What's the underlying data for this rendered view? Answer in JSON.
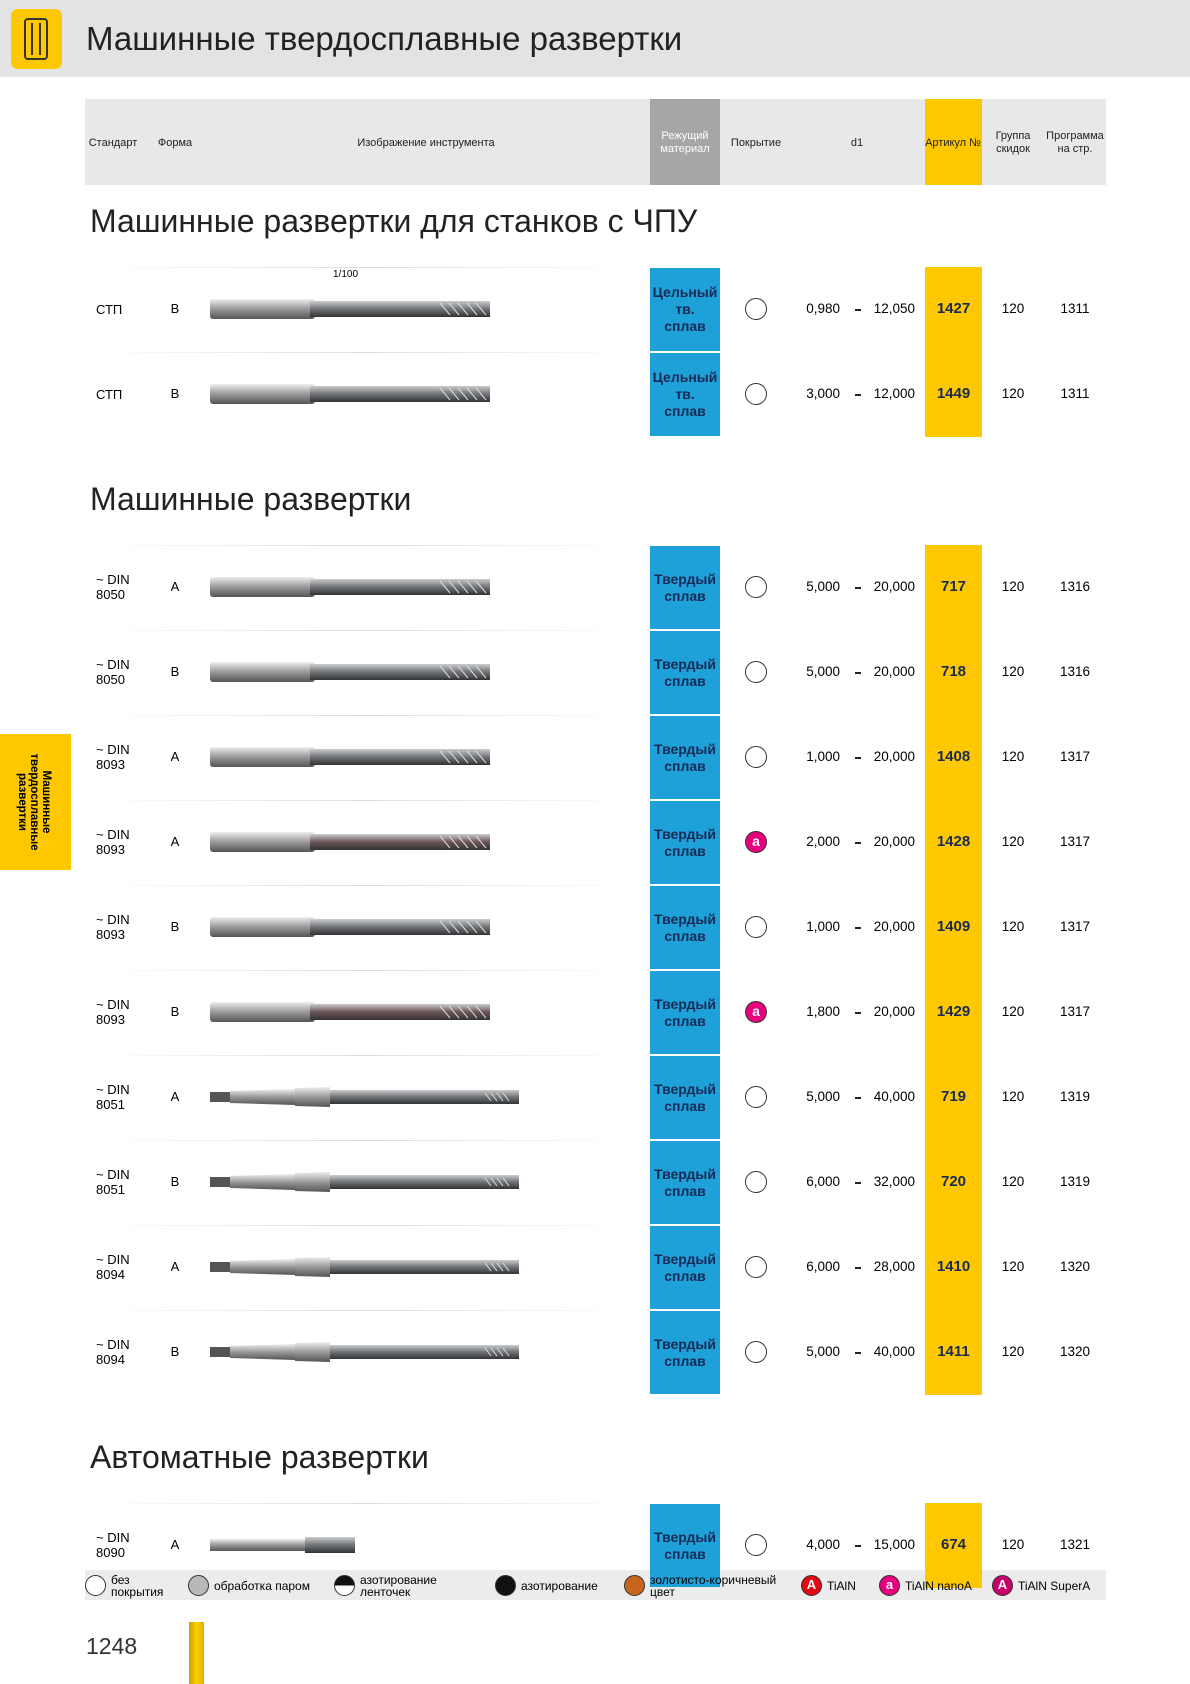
{
  "header": {
    "title": "Машинные твердосплавные развертки"
  },
  "columns": [
    "Стандарт",
    "Форма",
    "Изображение инструмента",
    "Режущий материал",
    "Покрытие",
    "d1",
    "Артикул №",
    "Группа скидок",
    "Программа на стр."
  ],
  "sections": [
    {
      "title": "Машинные развертки для станков с ЧПУ",
      "rows": [
        {
          "standard": "СТП",
          "form": "B",
          "note": "1/100",
          "material": "Цельный тв. сплав",
          "d1": [
            "0,980",
            "12,050"
          ],
          "article": "1427",
          "group": "120",
          "page": "1311"
        },
        {
          "standard": "СТП",
          "form": "B",
          "material": "Цельный тв. сплав",
          "d1": [
            "3,000",
            "12,000"
          ],
          "article": "1449",
          "group": "120",
          "page": "1311"
        }
      ]
    },
    {
      "title": "Машинные развертки",
      "rows": [
        {
          "standard": "~ DIN 8050",
          "form": "A",
          "material": "Твердый сплав",
          "d1": [
            "5,000",
            "20,000"
          ],
          "article": "717",
          "group": "120",
          "page": "1316"
        },
        {
          "standard": "~ DIN 8050",
          "form": "B",
          "material": "Твердый сплав",
          "d1": [
            "5,000",
            "20,000"
          ],
          "article": "718",
          "group": "120",
          "page": "1316"
        },
        {
          "standard": "~ DIN 8093",
          "form": "A",
          "material": "Твердый сплав",
          "d1": [
            "1,000",
            "20,000"
          ],
          "article": "1408",
          "group": "120",
          "page": "1317"
        },
        {
          "standard": "~ DIN 8093",
          "form": "A",
          "material": "Твердый сплав",
          "coating": "a",
          "d1": [
            "2,000",
            "20,000"
          ],
          "article": "1428",
          "group": "120",
          "page": "1317"
        },
        {
          "standard": "~ DIN 8093",
          "form": "B",
          "material": "Твердый сплав",
          "d1": [
            "1,000",
            "20,000"
          ],
          "article": "1409",
          "group": "120",
          "page": "1317"
        },
        {
          "standard": "~ DIN 8093",
          "form": "B",
          "material": "Твердый сплав",
          "coating": "a",
          "d1": [
            "1,800",
            "20,000"
          ],
          "article": "1429",
          "group": "120",
          "page": "1317"
        },
        {
          "standard": "~ DIN 8051",
          "form": "A",
          "material": "Твердый сплав",
          "d1": [
            "5,000",
            "40,000"
          ],
          "article": "719",
          "group": "120",
          "page": "1319"
        },
        {
          "standard": "~ DIN 8051",
          "form": "B",
          "material": "Твердый сплав",
          "d1": [
            "6,000",
            "32,000"
          ],
          "article": "720",
          "group": "120",
          "page": "1319"
        },
        {
          "standard": "~ DIN 8094",
          "form": "A",
          "material": "Твердый сплав",
          "d1": [
            "6,000",
            "28,000"
          ],
          "article": "1410",
          "group": "120",
          "page": "1320"
        },
        {
          "standard": "~ DIN 8094",
          "form": "B",
          "material": "Твердый сплав",
          "d1": [
            "5,000",
            "40,000"
          ],
          "article": "1411",
          "group": "120",
          "page": "1320"
        }
      ]
    },
    {
      "title": "Автоматные развертки",
      "rows": [
        {
          "standard": "~ DIN 8090",
          "form": "A",
          "material": "Твердый сплав",
          "d1": [
            "4,000",
            "15,000"
          ],
          "article": "674",
          "group": "120",
          "page": "1321"
        }
      ]
    }
  ],
  "legend": [
    {
      "label": "без покрытия",
      "color": "#ffffff"
    },
    {
      "label": "обработка паром",
      "color": "#b8b8b8"
    },
    {
      "label": "азотирование ленточек",
      "color": "half"
    },
    {
      "label": "азотирование",
      "color": "#111111"
    },
    {
      "label": "золотисто-коричневый цвет",
      "color": "#c8641e"
    },
    {
      "label": "TiAlN",
      "icon": "A",
      "color": "#e30613"
    },
    {
      "label": "TiAlN nanoA",
      "icon": "a",
      "color": "#e6007e"
    },
    {
      "label": "TiAlN SuperA",
      "icon": "A",
      "color": "#c8006a"
    }
  ],
  "side_tab": "Машинные твердосплавные развертки",
  "page_number": "1248"
}
